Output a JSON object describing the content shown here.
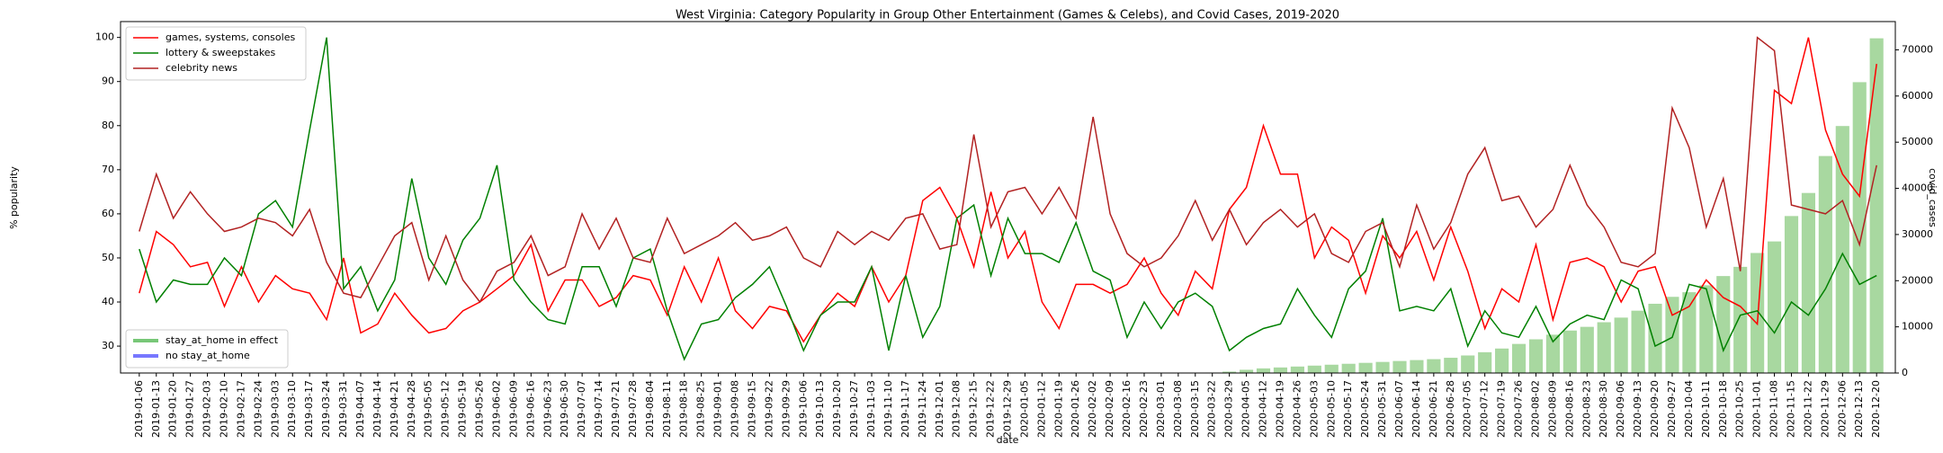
{
  "chart_data": {
    "type": "line",
    "title": "West Virginia: Category Popularity in Group Other Entertainment (Games & Celebs), and Covid Cases, 2019-2020",
    "xlabel": "date",
    "ylabel": "% popularity",
    "y2label": "covid_cases",
    "categories": [
      "2019-01-06",
      "2019-01-13",
      "2019-01-20",
      "2019-01-27",
      "2019-02-03",
      "2019-02-10",
      "2019-02-17",
      "2019-02-24",
      "2019-03-03",
      "2019-03-10",
      "2019-03-17",
      "2019-03-24",
      "2019-03-31",
      "2019-04-07",
      "2019-04-14",
      "2019-04-21",
      "2019-04-28",
      "2019-05-05",
      "2019-05-12",
      "2019-05-19",
      "2019-05-26",
      "2019-06-02",
      "2019-06-09",
      "2019-06-16",
      "2019-06-23",
      "2019-06-30",
      "2019-07-07",
      "2019-07-14",
      "2019-07-21",
      "2019-07-28",
      "2019-08-04",
      "2019-08-11",
      "2019-08-18",
      "2019-08-25",
      "2019-09-01",
      "2019-09-08",
      "2019-09-15",
      "2019-09-22",
      "2019-09-29",
      "2019-10-06",
      "2019-10-13",
      "2019-10-20",
      "2019-10-27",
      "2019-11-03",
      "2019-11-10",
      "2019-11-17",
      "2019-11-24",
      "2019-12-01",
      "2019-12-08",
      "2019-12-15",
      "2019-12-22",
      "2019-12-29",
      "2020-01-05",
      "2020-01-12",
      "2020-01-19",
      "2020-01-26",
      "2020-02-02",
      "2020-02-09",
      "2020-02-16",
      "2020-02-23",
      "2020-03-01",
      "2020-03-08",
      "2020-03-15",
      "2020-03-22",
      "2020-03-29",
      "2020-04-05",
      "2020-04-12",
      "2020-04-19",
      "2020-04-26",
      "2020-05-03",
      "2020-05-10",
      "2020-05-17",
      "2020-05-24",
      "2020-05-31",
      "2020-06-07",
      "2020-06-14",
      "2020-06-21",
      "2020-06-28",
      "2020-07-05",
      "2020-07-12",
      "2020-07-19",
      "2020-07-26",
      "2020-08-02",
      "2020-08-09",
      "2020-08-16",
      "2020-08-23",
      "2020-08-30",
      "2020-09-06",
      "2020-09-13",
      "2020-09-20",
      "2020-09-27",
      "2020-10-04",
      "2020-10-11",
      "2020-10-18",
      "2020-10-25",
      "2020-11-01",
      "2020-11-08",
      "2020-11-15",
      "2020-11-22",
      "2020-11-29",
      "2020-12-06",
      "2020-12-13",
      "2020-12-20"
    ],
    "series": [
      {
        "name": "games, systems, consoles",
        "color": "#ff0000",
        "values": [
          42,
          56,
          53,
          48,
          49,
          39,
          48,
          40,
          46,
          43,
          42,
          36,
          50,
          33,
          35,
          42,
          37,
          33,
          34,
          38,
          40,
          43,
          46,
          53,
          38,
          45,
          45,
          39,
          41,
          46,
          45,
          37,
          48,
          40,
          50,
          38,
          34,
          39,
          38,
          31,
          37,
          42,
          39,
          48,
          40,
          46,
          63,
          66,
          59,
          48,
          65,
          50,
          56,
          40,
          34,
          44,
          44,
          42,
          44,
          50,
          42,
          37,
          47,
          43,
          61,
          66,
          80,
          69,
          69,
          50,
          57,
          54,
          42,
          55,
          50,
          56,
          45,
          57,
          47,
          34,
          43,
          40,
          53,
          36,
          49,
          50,
          48,
          40,
          47,
          48,
          37,
          39,
          45,
          41,
          39,
          35,
          88,
          85,
          100,
          79,
          69,
          64,
          94
        ]
      },
      {
        "name": "lottery & sweepstakes",
        "color": "#008000",
        "values": [
          52,
          40,
          45,
          44,
          44,
          50,
          46,
          60,
          63,
          57,
          79,
          100,
          43,
          48,
          38,
          45,
          68,
          50,
          44,
          54,
          59,
          71,
          45,
          40,
          36,
          35,
          48,
          48,
          39,
          50,
          52,
          38,
          27,
          35,
          36,
          41,
          44,
          48,
          39,
          29,
          37,
          40,
          40,
          48,
          29,
          46,
          32,
          39,
          59,
          62,
          46,
          59,
          51,
          51,
          49,
          58,
          47,
          45,
          32,
          40,
          34,
          40,
          42,
          39,
          29,
          32,
          34,
          35,
          43,
          37,
          32,
          43,
          47,
          59,
          38,
          39,
          38,
          43,
          30,
          38,
          33,
          32,
          39,
          31,
          35,
          37,
          36,
          45,
          43,
          30,
          32,
          44,
          43,
          29,
          37,
          38,
          33,
          40,
          37,
          43,
          51,
          44,
          46
        ]
      },
      {
        "name": "celebrity news",
        "color": "#b22222",
        "values": [
          56,
          69,
          59,
          65,
          60,
          56,
          57,
          59,
          58,
          55,
          61,
          49,
          42,
          41,
          48,
          55,
          58,
          45,
          55,
          45,
          40,
          47,
          49,
          55,
          46,
          48,
          60,
          52,
          59,
          50,
          49,
          59,
          51,
          53,
          55,
          58,
          54,
          55,
          57,
          50,
          48,
          56,
          53,
          56,
          54,
          59,
          60,
          52,
          53,
          78,
          57,
          65,
          66,
          60,
          66,
          59,
          82,
          60,
          51,
          48,
          50,
          55,
          63,
          54,
          61,
          53,
          58,
          61,
          57,
          60,
          51,
          49,
          56,
          58,
          48,
          62,
          52,
          58,
          69,
          75,
          63,
          64,
          57,
          61,
          71,
          62,
          57,
          49,
          48,
          51,
          84,
          75,
          57,
          68,
          47,
          100,
          97,
          62,
          61,
          60,
          63,
          53,
          71
        ]
      }
    ],
    "bars": {
      "axis": "y2",
      "color": "#a8d8a0",
      "values": [
        0,
        0,
        0,
        0,
        0,
        0,
        0,
        0,
        0,
        0,
        0,
        0,
        0,
        0,
        0,
        0,
        0,
        0,
        0,
        0,
        0,
        0,
        0,
        0,
        0,
        0,
        0,
        0,
        0,
        0,
        0,
        0,
        0,
        0,
        0,
        0,
        0,
        0,
        0,
        0,
        0,
        0,
        0,
        0,
        0,
        0,
        0,
        0,
        0,
        0,
        0,
        0,
        0,
        0,
        0,
        0,
        0,
        0,
        0,
        0,
        0,
        0,
        0,
        100,
        300,
        700,
        1000,
        1200,
        1400,
        1600,
        1800,
        2000,
        2200,
        2400,
        2600,
        2800,
        3000,
        3300,
        3800,
        4500,
        5300,
        6300,
        7300,
        8300,
        9200,
        10000,
        11000,
        12000,
        13500,
        15000,
        16500,
        17500,
        19000,
        21000,
        23000,
        26000,
        28500,
        34000,
        39000,
        47000,
        53500,
        63000,
        72500
      ]
    },
    "legend2": [
      {
        "name": "stay_at_home in effect",
        "color": "#77c777"
      },
      {
        "name": "no stay_at_home",
        "color": "#7777ff"
      }
    ],
    "ylim": [
      23.9,
      103.6
    ],
    "yticks": [
      30,
      40,
      50,
      60,
      70,
      80,
      90,
      100
    ],
    "y2lim": [
      0,
      76125
    ],
    "y2ticks": [
      0,
      10000,
      20000,
      30000,
      40000,
      50000,
      60000,
      70000
    ],
    "grid": false,
    "legend": "upper left",
    "legend2_position": "lower left"
  }
}
